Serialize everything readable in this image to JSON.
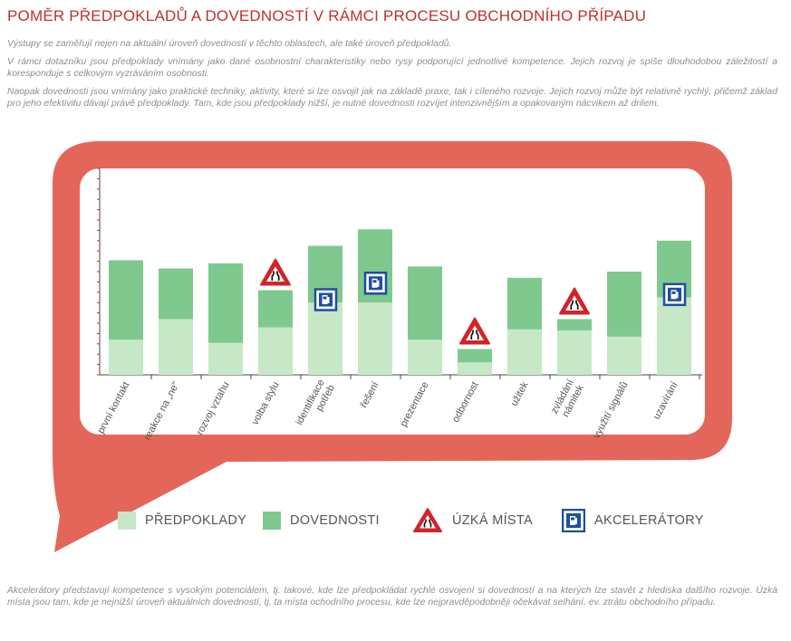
{
  "title": "POMĚR PŘEDPOKLADŮ A DOVEDNOSTÍ V RÁMCI PROCESU OBCHODNÍHO PŘÍPADU",
  "intro": [
    "Výstupy se zaměřují nejen na aktuální úroveň dovedností v těchto oblastech, ale také úroveň předpokladů.",
    "V rámci dotazníku jsou předpoklady vnímány jako dané osobnostní charakteristiky nebo rysy podporující jednotlivé kompetence. Jejich rozvoj je spíše dlouhodobou záležitostí a koresponduje s celkovým vyzráváním osobnosti.",
    "Naopak dovednosti jsou vnímány jako praktické techniky, aktivity, které si lze osvojit jak na základě praxe, tak i cíleného rozvoje. Jejich rozvoj může být relativně rychlý, přičemž základ pro jeho efektivitu dávají právě předpoklady. Tam, kde jsou předpoklady nižší, je nutné dovednosti rozvíjet intenzivnějším a opakovaným nácvikem až drilem."
  ],
  "footer": "Akcelerátory představují kompetence s vysokým potenciálem, tj. takové, kde lze předpokládat rychlé osvojení si dovedností a na kterých lze stavět z hlediska dalšího rozvoje. Úzká místa jsou tam, kde je nejnižší úroveň aktuálních dovedností, tj. ta místa ochodního procesu, kde lze nejpravděpodobněji očekávat selhání, ev. ztrátu obchodního případu.",
  "legend": {
    "predpoklady": "PŘEDPOKLADY",
    "dovednosti": "DOVEDNOSTI",
    "uzka_mista": "ÚZKÁ MÍSTA",
    "akceleratory": "AKCELERÁTORY"
  },
  "colors": {
    "predpoklady": "#c6e8c6",
    "dovednosti": "#7fc98f",
    "frame": "#e4665a",
    "title": "#c0302a",
    "warning_red": "#d2232a",
    "accelerator_blue": "#1f4e9c"
  },
  "chart_data": {
    "type": "bar",
    "stacked": true,
    "categories": [
      "první kontakt",
      "reakce na „ne\"",
      "rozvoj vztahu",
      "volba stylu",
      "identifikace potřeb",
      "řešení",
      "prezentace",
      "odbornost",
      "užitek",
      "zvládání námitek",
      "využití signálů",
      "uzavírání"
    ],
    "series": [
      {
        "name": "PŘEDPOKLADY",
        "values": [
          3.4,
          5.4,
          3.1,
          4.6,
          7.0,
          7.0,
          3.4,
          1.2,
          4.4,
          4.3,
          3.7,
          7.5
        ]
      },
      {
        "name": "DOVEDNOSTI",
        "values": [
          7.7,
          4.9,
          7.7,
          3.6,
          5.5,
          7.1,
          7.1,
          1.3,
          5.0,
          1.1,
          6.3,
          5.5
        ]
      }
    ],
    "markers": {
      "uzka_mista": [
        "volba stylu",
        "odbornost",
        "zvládání námitek"
      ],
      "akceleratory": [
        "identifikace potřeb",
        "řešení",
        "uzavírání"
      ]
    },
    "ylim": [
      0,
      20
    ],
    "y_ticks": 20,
    "grid": false,
    "legend_position": "bottom"
  }
}
